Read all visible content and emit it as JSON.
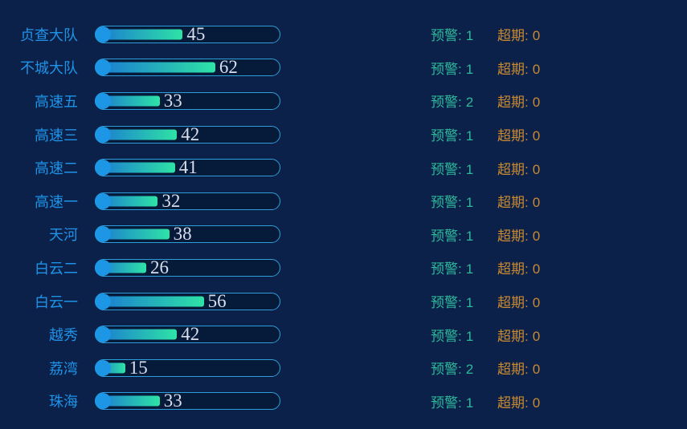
{
  "chart_data": {
    "type": "bar",
    "orientation": "horizontal",
    "title": "",
    "categories": [
      "贞查大队",
      "不城大队",
      "高速五",
      "高速三",
      "高速二",
      "高速一",
      "天河",
      "白云二",
      "白云一",
      "越秀",
      "荔湾",
      "珠海"
    ],
    "values": [
      45,
      62,
      33,
      42,
      41,
      32,
      38,
      26,
      56,
      42,
      15,
      33
    ],
    "warning_counts": [
      1,
      1,
      2,
      1,
      1,
      1,
      1,
      1,
      1,
      1,
      2,
      1
    ],
    "overdue_counts": [
      0,
      0,
      0,
      0,
      0,
      0,
      0,
      0,
      0,
      0,
      0,
      0
    ],
    "xlim": [
      0,
      96
    ],
    "grid": false,
    "legend_position": "none",
    "value_labels_shown": true
  },
  "stat_labels": {
    "warning": "预警:",
    "overdue": "超期:"
  },
  "colors": {
    "background": "#0b2149",
    "track_border": "#2e9ed8",
    "track_fill": "#061a3a",
    "bar_gradient_start": "#1a78d2",
    "bar_gradient_end": "#2ee3a6",
    "bar_cap_circle": "#1d96e6",
    "category_label": "#1f93e8",
    "value_text": "#d9deed",
    "warning_text": "#2eb99b",
    "overdue_text": "#ca8a31"
  }
}
